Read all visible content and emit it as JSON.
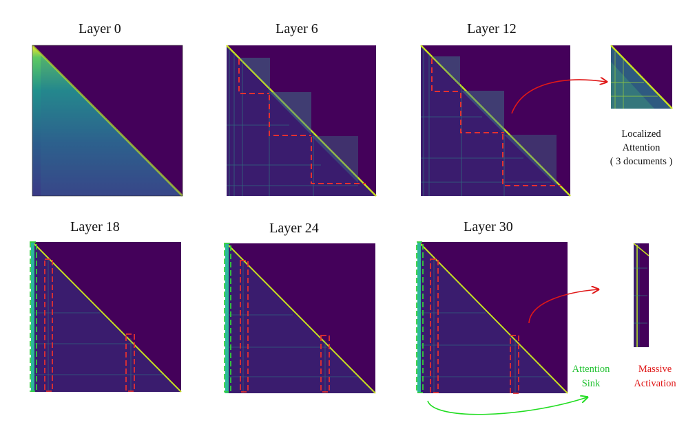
{
  "panels": [
    {
      "title": "Layer 0"
    },
    {
      "title": "Layer 6"
    },
    {
      "title": "Layer 12"
    },
    {
      "title": "Layer 18"
    },
    {
      "title": "Layer 24"
    },
    {
      "title": "Layer 30"
    }
  ],
  "annotations": {
    "localized": {
      "line1": "Localized",
      "line2": "Attention",
      "line3": "( 3 documents )"
    },
    "sink": {
      "line1": "Attention",
      "line2": "Sink"
    },
    "massive": {
      "line1": "Massive",
      "line2": "Activation"
    }
  },
  "colors": {
    "matrix_background": "#44015a",
    "diagonal_yellow": "#fde725",
    "mid_teal": "#21918c",
    "document_box": "#e53030",
    "sink_box": "#34d13a",
    "arrow_red": "#e01818",
    "arrow_green": "#22dd22"
  }
}
